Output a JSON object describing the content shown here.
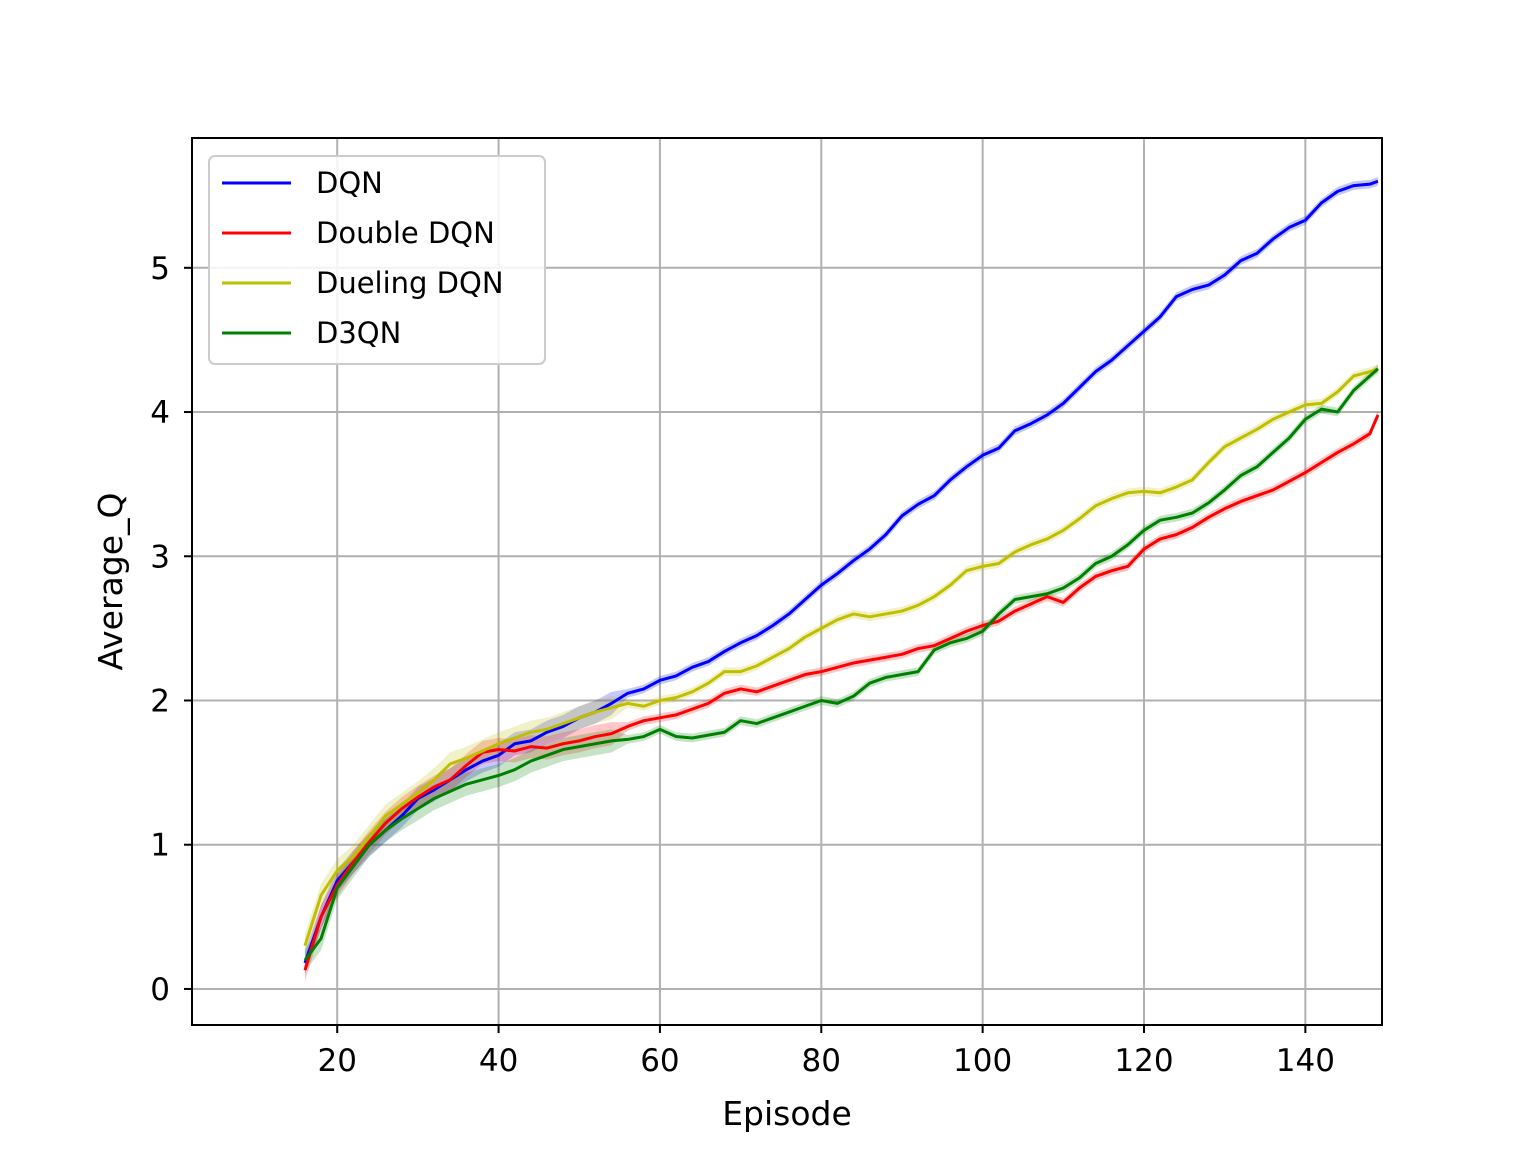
{
  "chart_data": {
    "type": "line",
    "xlabel": "Episode",
    "ylabel": "Average_Q",
    "xlim": [
      2,
      149.5
    ],
    "ylim": [
      -0.25,
      5.9
    ],
    "xticks": [
      20,
      40,
      60,
      80,
      100,
      120,
      140
    ],
    "xtick_labels": [
      "20",
      "40",
      "60",
      "80",
      "100",
      "120",
      "140"
    ],
    "yticks": [
      0,
      1,
      2,
      3,
      4,
      5
    ],
    "ytick_labels": [
      "0",
      "1",
      "2",
      "3",
      "4",
      "5"
    ],
    "grid": true,
    "legend_position": "top-left",
    "series": [
      {
        "name": "DQN",
        "color": "#0000ff",
        "x": [
          16,
          18,
          20,
          22,
          24,
          26,
          28,
          30,
          32,
          34,
          36,
          38,
          40,
          42,
          44,
          46,
          48,
          50,
          52,
          54,
          56,
          58,
          60,
          62,
          64,
          66,
          68,
          70,
          72,
          74,
          76,
          78,
          80,
          82,
          84,
          86,
          88,
          90,
          92,
          94,
          96,
          98,
          100,
          102,
          104,
          106,
          108,
          110,
          112,
          114,
          116,
          118,
          120,
          122,
          124,
          126,
          128,
          130,
          132,
          134,
          136,
          138,
          140,
          142,
          144,
          146,
          148,
          149
        ],
        "y": [
          0.18,
          0.5,
          0.75,
          0.88,
          1.0,
          1.1,
          1.2,
          1.32,
          1.38,
          1.45,
          1.52,
          1.58,
          1.62,
          1.7,
          1.72,
          1.78,
          1.82,
          1.88,
          1.92,
          1.98,
          2.05,
          2.08,
          2.14,
          2.17,
          2.23,
          2.27,
          2.34,
          2.4,
          2.45,
          2.52,
          2.6,
          2.7,
          2.8,
          2.88,
          2.97,
          3.05,
          3.15,
          3.28,
          3.36,
          3.42,
          3.53,
          3.62,
          3.7,
          3.75,
          3.87,
          3.92,
          3.98,
          4.06,
          4.17,
          4.28,
          4.36,
          4.46,
          4.56,
          4.66,
          4.8,
          4.85,
          4.88,
          4.95,
          5.05,
          5.1,
          5.2,
          5.28,
          5.33,
          5.45,
          5.53,
          5.57,
          5.58,
          5.6
        ]
      },
      {
        "name": "Double DQN",
        "color": "#ff0000",
        "x": [
          16,
          18,
          20,
          22,
          24,
          26,
          28,
          30,
          32,
          34,
          36,
          38,
          40,
          42,
          44,
          46,
          48,
          50,
          52,
          54,
          56,
          58,
          60,
          62,
          64,
          66,
          68,
          70,
          72,
          74,
          76,
          78,
          80,
          82,
          84,
          86,
          88,
          90,
          92,
          94,
          96,
          98,
          100,
          102,
          104,
          106,
          108,
          110,
          112,
          114,
          116,
          118,
          120,
          122,
          124,
          126,
          128,
          130,
          132,
          134,
          136,
          138,
          140,
          142,
          144,
          146,
          148,
          149
        ],
        "y": [
          0.13,
          0.5,
          0.72,
          0.88,
          1.02,
          1.15,
          1.25,
          1.33,
          1.4,
          1.45,
          1.55,
          1.64,
          1.66,
          1.65,
          1.68,
          1.67,
          1.7,
          1.72,
          1.75,
          1.77,
          1.82,
          1.86,
          1.88,
          1.9,
          1.94,
          1.98,
          2.05,
          2.08,
          2.06,
          2.1,
          2.14,
          2.18,
          2.2,
          2.23,
          2.26,
          2.28,
          2.3,
          2.32,
          2.36,
          2.38,
          2.43,
          2.48,
          2.52,
          2.55,
          2.62,
          2.67,
          2.72,
          2.68,
          2.78,
          2.86,
          2.9,
          2.93,
          3.05,
          3.12,
          3.15,
          3.2,
          3.27,
          3.33,
          3.38,
          3.42,
          3.46,
          3.52,
          3.58,
          3.65,
          3.72,
          3.78,
          3.85,
          3.98
        ]
      },
      {
        "name": "Dueling DQN",
        "color": "#bfbf00",
        "x": [
          16,
          18,
          20,
          22,
          24,
          26,
          28,
          30,
          32,
          34,
          36,
          38,
          40,
          42,
          44,
          46,
          48,
          50,
          52,
          54,
          56,
          58,
          60,
          62,
          64,
          66,
          68,
          70,
          72,
          74,
          76,
          78,
          80,
          82,
          84,
          86,
          88,
          90,
          92,
          94,
          96,
          98,
          100,
          102,
          104,
          106,
          108,
          110,
          112,
          114,
          116,
          118,
          120,
          122,
          124,
          126,
          128,
          130,
          132,
          134,
          136,
          138,
          140,
          142,
          144,
          146,
          148,
          149
        ],
        "y": [
          0.3,
          0.65,
          0.82,
          0.92,
          1.06,
          1.2,
          1.28,
          1.36,
          1.45,
          1.56,
          1.6,
          1.65,
          1.7,
          1.74,
          1.78,
          1.8,
          1.84,
          1.88,
          1.92,
          1.95,
          1.98,
          1.96,
          2.0,
          2.02,
          2.06,
          2.12,
          2.2,
          2.2,
          2.24,
          2.3,
          2.36,
          2.44,
          2.5,
          2.56,
          2.6,
          2.58,
          2.6,
          2.62,
          2.66,
          2.72,
          2.8,
          2.9,
          2.93,
          2.95,
          3.03,
          3.08,
          3.12,
          3.18,
          3.26,
          3.35,
          3.4,
          3.44,
          3.45,
          3.44,
          3.48,
          3.53,
          3.65,
          3.76,
          3.82,
          3.88,
          3.95,
          4.0,
          4.05,
          4.06,
          4.14,
          4.25,
          4.28,
          4.3
        ]
      },
      {
        "name": "D3QN",
        "color": "#008000",
        "x": [
          16,
          18,
          20,
          22,
          24,
          26,
          28,
          30,
          32,
          34,
          36,
          38,
          40,
          42,
          44,
          46,
          48,
          50,
          52,
          54,
          56,
          58,
          60,
          62,
          64,
          66,
          68,
          70,
          72,
          74,
          76,
          78,
          80,
          82,
          84,
          86,
          88,
          90,
          92,
          94,
          96,
          98,
          100,
          102,
          104,
          106,
          108,
          110,
          112,
          114,
          116,
          118,
          120,
          122,
          124,
          126,
          128,
          130,
          132,
          134,
          136,
          138,
          140,
          142,
          144,
          146,
          148,
          149
        ],
        "y": [
          0.2,
          0.35,
          0.7,
          0.85,
          1.0,
          1.1,
          1.18,
          1.25,
          1.32,
          1.37,
          1.42,
          1.45,
          1.48,
          1.52,
          1.58,
          1.62,
          1.66,
          1.68,
          1.7,
          1.72,
          1.73,
          1.75,
          1.8,
          1.75,
          1.74,
          1.76,
          1.78,
          1.86,
          1.84,
          1.88,
          1.92,
          1.96,
          2.0,
          1.98,
          2.03,
          2.12,
          2.16,
          2.18,
          2.2,
          2.35,
          2.4,
          2.43,
          2.48,
          2.6,
          2.7,
          2.72,
          2.74,
          2.78,
          2.85,
          2.95,
          3.0,
          3.08,
          3.18,
          3.25,
          3.27,
          3.3,
          3.37,
          3.46,
          3.56,
          3.62,
          3.72,
          3.82,
          3.95,
          4.02,
          4.0,
          4.15,
          4.25,
          4.3
        ]
      }
    ]
  }
}
